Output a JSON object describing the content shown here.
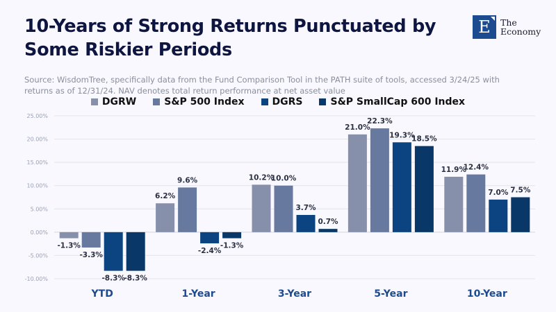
{
  "header": {
    "title": "10-Years of Strong Returns Punctuated by Some Riskier Periods",
    "source": "Source: WisdomTree, specifically data from the Fund Comparison Tool in the PATH suite of tools, accessed 3/24/25 with returns as of 12/31/24. NAV denotes total return performance at net asset value"
  },
  "logo": {
    "mark": "E",
    "line1": "The",
    "line2": "Economy",
    "color": "#1d4b8f"
  },
  "chart_data": {
    "type": "bar",
    "title": "10-Years of Strong Returns Punctuated by Some Riskier Periods",
    "xlabel": "",
    "ylabel": "",
    "categories": [
      "YTD",
      "1-Year",
      "3-Year",
      "5-Year",
      "10-Year"
    ],
    "series": [
      {
        "name": "DGRW",
        "color": "#8790ab",
        "values": [
          -1.3,
          6.2,
          10.2,
          21.0,
          11.9
        ]
      },
      {
        "name": "S&P 500 Index",
        "color": "#6879a0",
        "values": [
          -3.3,
          9.6,
          10.0,
          22.3,
          12.4
        ]
      },
      {
        "name": "DGRS",
        "color": "#0b4480",
        "values": [
          -8.3,
          -2.4,
          3.7,
          19.3,
          7.0
        ]
      },
      {
        "name": "S&P SmallCap 600 Index",
        "color": "#083768",
        "values": [
          -8.3,
          -1.3,
          0.7,
          18.5,
          7.5
        ]
      }
    ],
    "ylim": [
      -10,
      25
    ],
    "yticks": [
      25,
      20,
      15,
      10,
      5,
      0,
      -5,
      -10
    ],
    "ytick_labels": [
      "25.00%",
      "20.00%",
      "15.00%",
      "10.00%",
      "5.00%",
      "0.00%",
      "-5.00%",
      "-10.00%"
    ],
    "grid": true,
    "legend": "top-center",
    "data_label_suffix": "%"
  }
}
